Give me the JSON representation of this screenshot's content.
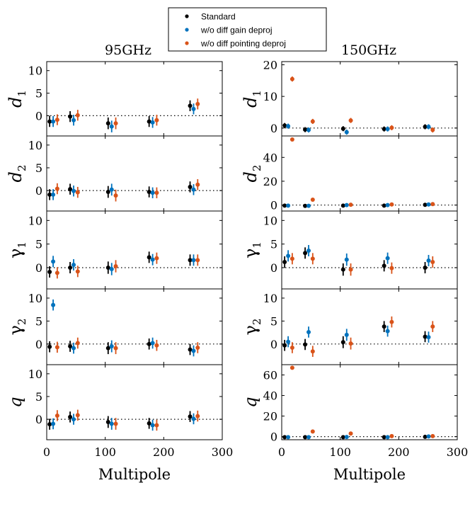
{
  "legend": {
    "entries": [
      {
        "label": "Standard",
        "color": "#000000"
      },
      {
        "label": "w/o diff gain deproj",
        "color": "#0072BD"
      },
      {
        "label": "w/o diff pointing deproj",
        "color": "#D95319"
      }
    ]
  },
  "columns": [
    {
      "title": "95GHz",
      "xlabel": "Multipole"
    },
    {
      "title": "150GHz",
      "xlabel": "Multipole"
    }
  ],
  "chart_data": [
    {
      "type": "scatter",
      "column": "95GHz",
      "ylabel": "d",
      "ysub": "1",
      "ylabel_style": "italic",
      "xlim": [
        0,
        300
      ],
      "ylim": [
        -4.5,
        12
      ],
      "yticks": [
        0,
        5,
        10
      ],
      "xticks": [
        0,
        100,
        200,
        300
      ],
      "x_base": [
        5,
        40,
        105,
        175,
        245
      ],
      "series": [
        {
          "name": "Standard",
          "offset": 0,
          "values": [
            -1.3,
            -0.2,
            -1.7,
            -1.3,
            2.2
          ],
          "errors": [
            1.2,
            1.2,
            1.3,
            1.2,
            1.2
          ]
        },
        {
          "name": "w/o diff gain deproj",
          "offset": 6,
          "values": [
            -1.3,
            -1.0,
            -2.4,
            -1.5,
            1.5
          ],
          "errors": [
            1.2,
            1.2,
            1.3,
            1.2,
            1.2
          ]
        },
        {
          "name": "w/o diff pointing deproj",
          "offset": 13,
          "values": [
            -0.9,
            0.1,
            -1.7,
            -1.0,
            2.6
          ],
          "errors": [
            1.2,
            1.2,
            1.3,
            1.2,
            1.2
          ]
        }
      ]
    },
    {
      "type": "scatter",
      "column": "95GHz",
      "ylabel": "d",
      "ysub": "2",
      "ylabel_style": "italic",
      "xlim": [
        0,
        300
      ],
      "ylim": [
        -4.5,
        12
      ],
      "yticks": [
        0,
        5,
        10
      ],
      "xticks": [
        0,
        100,
        200,
        300
      ],
      "x_base": [
        5,
        40,
        105,
        175,
        245
      ],
      "series": [
        {
          "name": "Standard",
          "offset": 0,
          "values": [
            -0.9,
            0.3,
            -0.3,
            -0.3,
            0.8
          ],
          "errors": [
            1.2,
            1.2,
            1.3,
            1.2,
            1.2
          ]
        },
        {
          "name": "w/o diff gain deproj",
          "offset": 6,
          "values": [
            -0.9,
            -0.1,
            0.2,
            -0.5,
            0.2
          ],
          "errors": [
            1.2,
            1.2,
            1.3,
            1.2,
            1.2
          ]
        },
        {
          "name": "w/o diff pointing deproj",
          "offset": 13,
          "values": [
            0.4,
            -0.4,
            -1.1,
            -0.5,
            1.3
          ],
          "errors": [
            1.2,
            1.2,
            1.3,
            1.2,
            1.2
          ]
        }
      ]
    },
    {
      "type": "scatter",
      "column": "95GHz",
      "ylabel": "γ",
      "ysub": "1",
      "ylabel_style": "normal",
      "xlim": [
        0,
        300
      ],
      "ylim": [
        -4.5,
        12
      ],
      "yticks": [
        0,
        5,
        10
      ],
      "xticks": [
        0,
        100,
        200,
        300
      ],
      "x_base": [
        5,
        40,
        105,
        175,
        245
      ],
      "series": [
        {
          "name": "Standard",
          "offset": 0,
          "values": [
            -0.9,
            0.0,
            0.0,
            2.2,
            1.6
          ],
          "errors": [
            1.2,
            1.2,
            1.3,
            1.2,
            1.2
          ]
        },
        {
          "name": "w/o diff gain deproj",
          "offset": 6,
          "values": [
            1.3,
            0.6,
            -0.3,
            1.7,
            1.6
          ],
          "errors": [
            1.2,
            1.2,
            1.3,
            1.2,
            1.2
          ]
        },
        {
          "name": "w/o diff pointing deproj",
          "offset": 13,
          "values": [
            -1.1,
            -0.8,
            0.3,
            2.0,
            1.6
          ],
          "errors": [
            1.2,
            1.2,
            1.3,
            1.2,
            1.2
          ]
        }
      ]
    },
    {
      "type": "scatter",
      "column": "95GHz",
      "ylabel": "γ",
      "ysub": "2",
      "ylabel_style": "normal",
      "xlim": [
        0,
        300
      ],
      "ylim": [
        -4.5,
        12
      ],
      "yticks": [
        0,
        5,
        10
      ],
      "xticks": [
        0,
        100,
        200,
        300
      ],
      "x_base": [
        5,
        40,
        105,
        175,
        245
      ],
      "series": [
        {
          "name": "Standard",
          "offset": 0,
          "values": [
            -0.6,
            -0.5,
            -0.9,
            0.0,
            -1.2
          ],
          "errors": [
            1.2,
            1.2,
            1.3,
            1.2,
            1.2
          ]
        },
        {
          "name": "w/o diff gain deproj",
          "offset": 6,
          "values": [
            8.5,
            -0.9,
            -0.5,
            0.2,
            -1.5
          ],
          "errors": [
            1.2,
            1.2,
            1.3,
            1.2,
            1.2
          ]
        },
        {
          "name": "w/o diff pointing deproj",
          "offset": 13,
          "values": [
            -0.7,
            0.2,
            -0.9,
            -0.3,
            -0.8
          ],
          "errors": [
            1.2,
            1.2,
            1.3,
            1.2,
            1.2
          ]
        }
      ]
    },
    {
      "type": "scatter",
      "column": "95GHz",
      "ylabel": "q",
      "ysub": "",
      "ylabel_style": "italic",
      "xlim": [
        0,
        300
      ],
      "ylim": [
        -4.5,
        12
      ],
      "yticks": [
        0,
        5,
        10
      ],
      "xticks": [
        0,
        100,
        200,
        300
      ],
      "x_base": [
        5,
        40,
        105,
        175,
        245
      ],
      "series": [
        {
          "name": "Standard",
          "offset": 0,
          "values": [
            -1.1,
            0.5,
            -0.6,
            -0.9,
            0.6
          ],
          "errors": [
            1.2,
            1.2,
            1.3,
            1.2,
            1.2
          ]
        },
        {
          "name": "w/o diff gain deproj",
          "offset": 6,
          "values": [
            -1.0,
            0.0,
            -1.0,
            -1.3,
            0.1
          ],
          "errors": [
            1.2,
            1.2,
            1.3,
            1.2,
            1.2
          ]
        },
        {
          "name": "w/o diff pointing deproj",
          "offset": 13,
          "values": [
            0.8,
            0.9,
            -1.0,
            -1.3,
            0.7
          ],
          "errors": [
            1.2,
            1.2,
            1.3,
            1.2,
            1.2
          ]
        }
      ]
    },
    {
      "type": "scatter",
      "column": "150GHz",
      "ylabel": "d",
      "ysub": "1",
      "ylabel_style": "italic",
      "xlim": [
        0,
        300
      ],
      "ylim": [
        -2.5,
        21
      ],
      "yticks": [
        0,
        10,
        20
      ],
      "xticks": [
        0,
        100,
        200,
        300
      ],
      "x_base": [
        5,
        40,
        105,
        175,
        245
      ],
      "series": [
        {
          "name": "Standard",
          "offset": 0,
          "values": [
            0.8,
            -0.5,
            -0.2,
            -0.3,
            0.4
          ],
          "errors": [
            0.8,
            0.8,
            0.8,
            0.8,
            0.8
          ]
        },
        {
          "name": "w/o diff gain deproj",
          "offset": 6,
          "values": [
            0.6,
            -0.6,
            -1.3,
            -0.3,
            0.4
          ],
          "errors": [
            0.8,
            0.8,
            0.8,
            0.8,
            0.8
          ]
        },
        {
          "name": "w/o diff pointing deproj",
          "offset": 13,
          "values": [
            15.5,
            2.1,
            2.4,
            0.1,
            -0.6
          ],
          "errors": [
            0.8,
            0.8,
            0.8,
            0.8,
            0.8
          ]
        }
      ]
    },
    {
      "type": "scatter",
      "column": "150GHz",
      "ylabel": "d",
      "ysub": "2",
      "ylabel_style": "italic",
      "xlim": [
        0,
        300
      ],
      "ylim": [
        -5,
        58
      ],
      "yticks": [
        0,
        20,
        40
      ],
      "xticks": [
        0,
        100,
        200,
        300
      ],
      "x_base": [
        5,
        40,
        105,
        175,
        245
      ],
      "series": [
        {
          "name": "Standard",
          "offset": 0,
          "values": [
            -0.5,
            -0.7,
            -0.5,
            -0.5,
            0.2
          ],
          "errors": [
            0.8,
            0.8,
            0.8,
            0.8,
            0.8
          ]
        },
        {
          "name": "w/o diff gain deproj",
          "offset": 6,
          "values": [
            -0.5,
            -0.6,
            0.0,
            0.0,
            0.5
          ],
          "errors": [
            0.8,
            0.8,
            0.8,
            0.8,
            0.8
          ]
        },
        {
          "name": "w/o diff pointing deproj",
          "offset": 13,
          "values": [
            55.0,
            4.5,
            0.3,
            0.5,
            0.8
          ],
          "errors": [
            0.8,
            0.8,
            0.8,
            0.8,
            0.8
          ]
        }
      ]
    },
    {
      "type": "scatter",
      "column": "150GHz",
      "ylabel": "γ",
      "ysub": "1",
      "ylabel_style": "normal",
      "xlim": [
        0,
        300
      ],
      "ylim": [
        -4.5,
        12
      ],
      "yticks": [
        0,
        5,
        10
      ],
      "xticks": [
        0,
        100,
        200,
        300
      ],
      "x_base": [
        5,
        40,
        105,
        175,
        245
      ],
      "series": [
        {
          "name": "Standard",
          "offset": 0,
          "values": [
            1.2,
            3.1,
            -0.4,
            0.4,
            0.0
          ],
          "errors": [
            1.2,
            1.2,
            1.3,
            1.2,
            1.2
          ]
        },
        {
          "name": "w/o diff gain deproj",
          "offset": 6,
          "values": [
            2.5,
            3.6,
            1.7,
            2.0,
            1.5
          ],
          "errors": [
            1.2,
            1.2,
            1.3,
            1.2,
            1.2
          ]
        },
        {
          "name": "w/o diff pointing deproj",
          "offset": 13,
          "values": [
            1.9,
            1.9,
            -0.4,
            -0.1,
            1.2
          ],
          "errors": [
            1.2,
            1.2,
            1.3,
            1.2,
            1.2
          ]
        }
      ]
    },
    {
      "type": "scatter",
      "column": "150GHz",
      "ylabel": "γ",
      "ysub": "2",
      "ylabel_style": "normal",
      "xlim": [
        0,
        300
      ],
      "ylim": [
        -4.5,
        12
      ],
      "yticks": [
        0,
        5,
        10
      ],
      "xticks": [
        0,
        100,
        200,
        300
      ],
      "x_base": [
        5,
        40,
        105,
        175,
        245
      ],
      "series": [
        {
          "name": "Standard",
          "offset": 0,
          "values": [
            -0.3,
            -0.1,
            0.4,
            3.8,
            1.6
          ],
          "errors": [
            1.2,
            1.2,
            1.3,
            1.2,
            1.2
          ]
        },
        {
          "name": "w/o diff gain deproj",
          "offset": 6,
          "values": [
            0.5,
            2.6,
            2.0,
            2.8,
            1.5
          ],
          "errors": [
            1.2,
            1.2,
            1.3,
            1.2,
            1.2
          ]
        },
        {
          "name": "w/o diff pointing deproj",
          "offset": 13,
          "values": [
            -0.8,
            -1.6,
            0.1,
            4.8,
            3.8
          ],
          "errors": [
            1.2,
            1.2,
            1.3,
            1.2,
            1.2
          ]
        }
      ]
    },
    {
      "type": "scatter",
      "column": "150GHz",
      "ylabel": "q",
      "ysub": "",
      "ylabel_style": "italic",
      "xlim": [
        0,
        300
      ],
      "ylim": [
        -3,
        70
      ],
      "yticks": [
        0,
        20,
        40,
        60
      ],
      "xticks": [
        0,
        100,
        200,
        300
      ],
      "x_base": [
        5,
        40,
        105,
        175,
        245
      ],
      "series": [
        {
          "name": "Standard",
          "offset": 0,
          "values": [
            -0.5,
            -0.5,
            -0.5,
            -0.5,
            -0.2
          ],
          "errors": [
            0.9,
            0.9,
            0.9,
            0.9,
            0.9
          ]
        },
        {
          "name": "w/o diff gain deproj",
          "offset": 6,
          "values": [
            -0.5,
            -0.5,
            -0.3,
            -0.5,
            0.2
          ],
          "errors": [
            0.9,
            0.9,
            0.9,
            0.9,
            0.9
          ]
        },
        {
          "name": "w/o diff pointing deproj",
          "offset": 13,
          "values": [
            67.0,
            5.0,
            3.0,
            0.5,
            0.5
          ],
          "errors": [
            0.9,
            0.9,
            0.9,
            0.9,
            0.9
          ]
        }
      ]
    }
  ]
}
